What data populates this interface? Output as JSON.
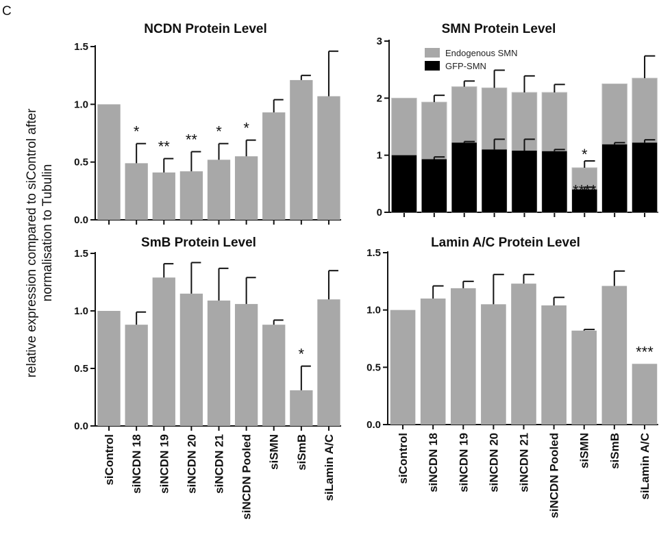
{
  "figure": {
    "panel_label": "C",
    "shared_ylabel_line1": "relative expression compared to siControl after",
    "shared_ylabel_line2": "normalisation to Tubulin"
  },
  "colors": {
    "bar": "#a8a8a8",
    "gfp": "#000000",
    "axis": "#111111"
  },
  "chart_data": [
    {
      "id": "ncdn",
      "type": "bar",
      "title": "NCDN Protein Level",
      "categories": [
        "siControl",
        "siNCDN 18",
        "siNCDN 19",
        "siNCDN 20",
        "siNCDN 21",
        "siNCDN Pooled",
        "siSMN",
        "siSmB",
        "siLamin A/C"
      ],
      "values": [
        1.0,
        0.49,
        0.41,
        0.42,
        0.52,
        0.55,
        0.93,
        1.21,
        1.07
      ],
      "errors": [
        0,
        0.17,
        0.12,
        0.17,
        0.14,
        0.14,
        0.11,
        0.04,
        0.39
      ],
      "significance": [
        "",
        "*",
        "**",
        "**",
        "*",
        "*",
        "",
        "",
        ""
      ],
      "ylim": [
        0,
        1.5
      ],
      "yticks": [
        "0.0",
        "0.5",
        "1.0",
        "1.5"
      ],
      "ytick_values": [
        0,
        0.5,
        1.0,
        1.5
      ]
    },
    {
      "id": "smn",
      "type": "bar",
      "stacked": true,
      "title": "SMN Protein Level",
      "categories": [
        "siControl",
        "siNCDN 18",
        "siNCDN 19",
        "siNCDN 20",
        "siNCDN 21",
        "siNCDN Pooled",
        "siSMN",
        "siSmB",
        "siLamin A/C"
      ],
      "series": [
        {
          "name": "Endogenous SMN",
          "totals": [
            2.0,
            1.93,
            2.2,
            2.18,
            2.1,
            2.1,
            0.78,
            2.25,
            2.35
          ],
          "errors": [
            0,
            0.12,
            0.1,
            0.31,
            0.29,
            0.14,
            0.12,
            0,
            0.39
          ]
        },
        {
          "name": "GFP-SMN",
          "values": [
            1.0,
            0.93,
            1.22,
            1.1,
            1.08,
            1.07,
            0.4,
            1.19,
            1.22
          ],
          "errors": [
            0,
            0.04,
            0.02,
            0.18,
            0.2,
            0.03,
            0.04,
            0.03,
            0.05
          ]
        }
      ],
      "significance_total": [
        "",
        "",
        "",
        "",
        "",
        "",
        "*",
        "",
        ""
      ],
      "significance_gfp": [
        "",
        "",
        "",
        "",
        "",
        "",
        "****",
        "",
        ""
      ],
      "legend_position": "top-right",
      "ylim": [
        0,
        3
      ],
      "yticks": [
        "0",
        "1",
        "2",
        "3"
      ],
      "ytick_values": [
        0,
        1,
        2,
        3
      ]
    },
    {
      "id": "smb",
      "type": "bar",
      "title": "SmB Protein Level",
      "categories": [
        "siControl",
        "siNCDN 18",
        "siNCDN 19",
        "siNCDN 20",
        "siNCDN 21",
        "siNCDN Pooled",
        "siSMN",
        "siSmB",
        "siLamin A/C"
      ],
      "values": [
        1.0,
        0.88,
        1.29,
        1.15,
        1.09,
        1.06,
        0.88,
        0.31,
        1.1
      ],
      "errors": [
        0,
        0.11,
        0.12,
        0.27,
        0.28,
        0.23,
        0.04,
        0.21,
        0.25
      ],
      "significance": [
        "",
        "",
        "",
        "",
        "",
        "",
        "",
        "*",
        ""
      ],
      "ylim": [
        0,
        1.5
      ],
      "yticks": [
        "0.0",
        "0.5",
        "1.0",
        "1.5"
      ],
      "ytick_values": [
        0,
        0.5,
        1.0,
        1.5
      ]
    },
    {
      "id": "lamin",
      "type": "bar",
      "title": "Lamin A/C Protein Level",
      "categories": [
        "siControl",
        "siNCDN 18",
        "siNCDN 19",
        "siNCDN 20",
        "siNCDN 21",
        "siNCDN Pooled",
        "siSMN",
        "siSmB",
        "siLamin A/C"
      ],
      "values": [
        1.0,
        1.1,
        1.19,
        1.05,
        1.23,
        1.04,
        0.82,
        1.21,
        0.53
      ],
      "errors": [
        0,
        0.11,
        0.06,
        0.26,
        0.08,
        0.07,
        0.01,
        0.13,
        0
      ],
      "significance": [
        "",
        "",
        "",
        "",
        "",
        "",
        "",
        "",
        "***"
      ],
      "ylim": [
        0,
        1.5
      ],
      "yticks": [
        "0.0",
        "0.5",
        "1.0",
        "1.5"
      ],
      "ytick_values": [
        0,
        0.5,
        1.0,
        1.5
      ]
    }
  ]
}
